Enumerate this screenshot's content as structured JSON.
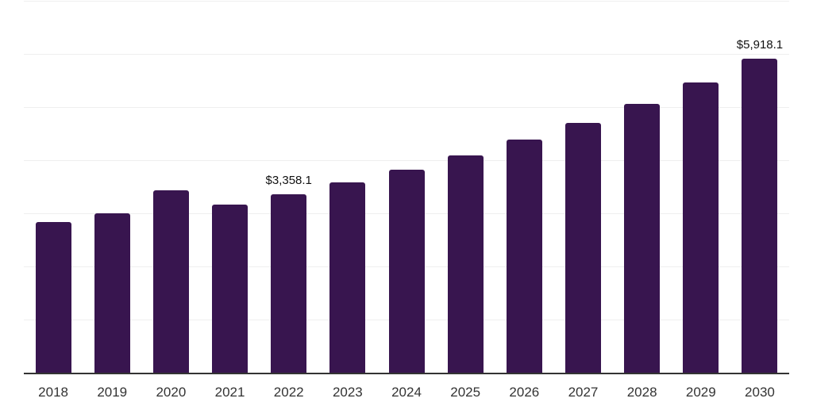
{
  "chart_data": {
    "type": "bar",
    "title": "",
    "xlabel": "",
    "ylabel": "",
    "categories": [
      "2018",
      "2019",
      "2020",
      "2021",
      "2022",
      "2023",
      "2024",
      "2025",
      "2026",
      "2027",
      "2028",
      "2029",
      "2030"
    ],
    "values": [
      2835,
      3000,
      3440,
      3170,
      3358.1,
      3580,
      3820,
      4090,
      4390,
      4700,
      5060,
      5465,
      5918.1
    ],
    "bar_labels": [
      "",
      "",
      "",
      "",
      "$3,358.1",
      "",
      "",
      "",
      "",
      "",
      "",
      "",
      "$5,918.1"
    ],
    "ylim": [
      0,
      7000
    ],
    "gridline_step": 1000,
    "grid": "horizontal-only",
    "legend": "none",
    "y_axis_tick_labels_visible": false,
    "colors": {
      "bar": "#38154F",
      "gridline": "#efefef",
      "axis_line": "#333333",
      "x_tick_label": "#333333",
      "data_label": "#111111",
      "background": "#ffffff"
    }
  }
}
